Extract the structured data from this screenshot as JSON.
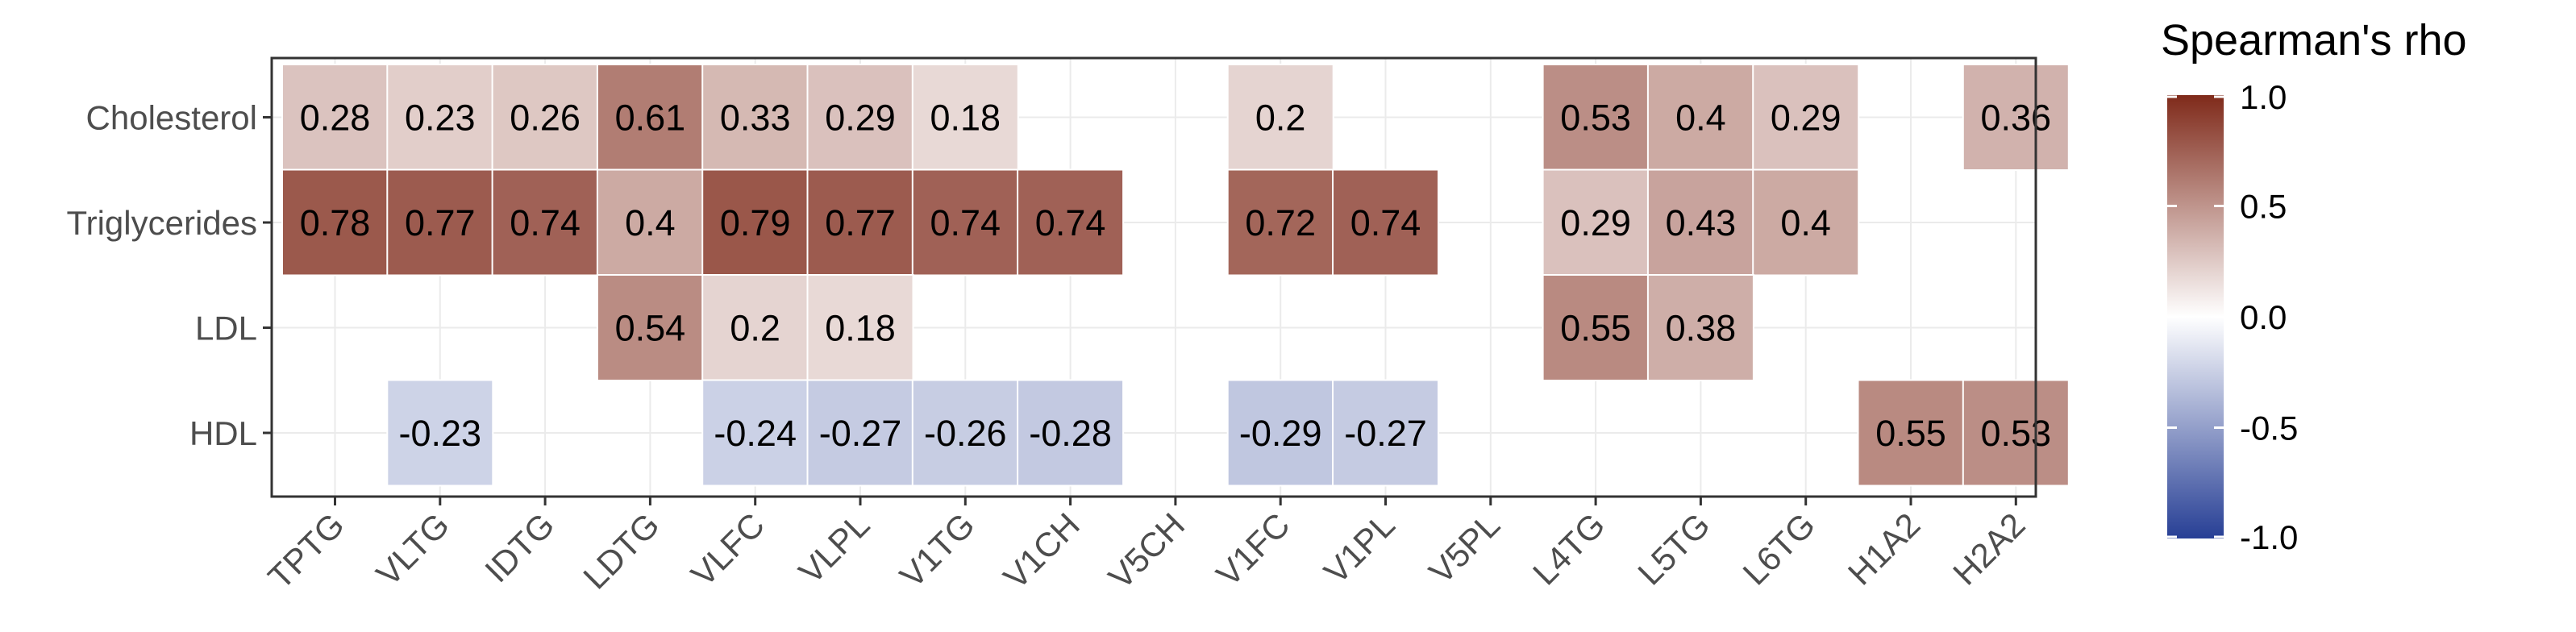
{
  "chart_data": {
    "type": "heatmap",
    "y_categories": [
      "Cholesterol",
      "Triglycerides",
      "LDL",
      "HDL"
    ],
    "x_categories": [
      "TPTG",
      "VLTG",
      "IDTG",
      "LDTG",
      "VLFC",
      "VLPL",
      "V1TG",
      "V1CH",
      "V5CH",
      "V1FC",
      "V1PL",
      "V5PL",
      "L4TG",
      "L5TG",
      "L6TG",
      "H1A2",
      "H2A2"
    ],
    "values": [
      [
        0.28,
        0.23,
        0.26,
        0.61,
        0.33,
        0.29,
        0.18,
        null,
        null,
        0.2,
        null,
        null,
        0.53,
        0.4,
        0.29,
        null,
        0.36
      ],
      [
        0.78,
        0.77,
        0.74,
        0.4,
        0.79,
        0.77,
        0.74,
        0.74,
        null,
        0.72,
        0.74,
        null,
        0.29,
        0.43,
        0.4,
        null,
        null
      ],
      [
        null,
        null,
        null,
        0.54,
        0.2,
        0.18,
        null,
        null,
        null,
        null,
        null,
        null,
        0.55,
        0.38,
        null,
        null,
        null
      ],
      [
        null,
        -0.23,
        null,
        null,
        -0.24,
        -0.27,
        -0.26,
        -0.28,
        null,
        -0.29,
        -0.27,
        null,
        null,
        null,
        null,
        0.55,
        0.53
      ]
    ],
    "legend": {
      "title": "Spearman's rho",
      "ticks": [
        "1.0",
        "0.5",
        "0.0",
        "-0.5",
        "-1.0"
      ],
      "tick_values": [
        1.0,
        0.5,
        0.0,
        -0.5,
        -1.0
      ],
      "range": [
        -1.0,
        1.0
      ],
      "colors": {
        "low": "#273F95",
        "mid": "#FFFFFF",
        "high": "#7F2A1A"
      },
      "placement": "right"
    },
    "xlabel": "",
    "ylabel": "",
    "grid": true
  }
}
